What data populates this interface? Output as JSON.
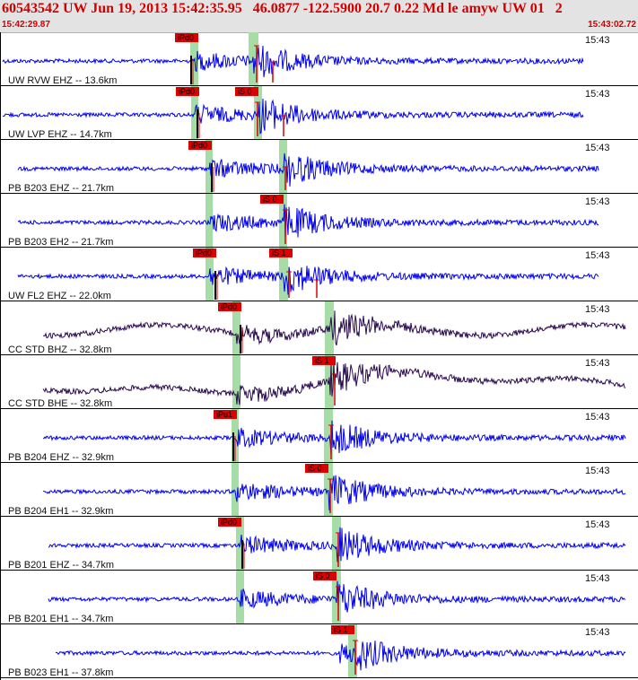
{
  "header": {
    "title": "60543542 UW Jun 19, 2013 15:42:35.95   46.0877 -122.5900 20.7 0.22 Md le amyw UW 01   2",
    "start_time": "15:42:29.87",
    "end_time": "15:43:02.72"
  },
  "colors": {
    "wave": "#0000ee",
    "wave_broadband": "#2a0a50",
    "pick": "#dd0000",
    "window": "#a6dca6",
    "separator": "#000000",
    "text": "#111111"
  },
  "traces": [
    {
      "label": "UW RVW EHZ -- 13.6km",
      "time_label": "15:43",
      "picks": [
        {
          "text": "iPd0"
        }
      ]
    },
    {
      "label": "UW LVP EHZ -- 14.7km",
      "time_label": "15:43",
      "picks": [
        {
          "text": "iPd0"
        },
        {
          "text": "iS 0"
        }
      ]
    },
    {
      "label": "PB B203 EHZ -- 21.7km",
      "time_label": "15:43",
      "picks": [
        {
          "text": "iPd0"
        }
      ]
    },
    {
      "label": "PB B203 EH2 -- 21.7km",
      "time_label": "15:43",
      "picks": [
        {
          "text": "iS 0"
        }
      ]
    },
    {
      "label": "UW FL2 EHZ -- 22.0km",
      "time_label": "15:43",
      "picks": [
        {
          "text": "iPd0"
        },
        {
          "text": "iS 1"
        }
      ]
    },
    {
      "label": "CC STD BHZ -- 32.8km",
      "time_label": "15:43",
      "picks": [
        {
          "text": "iPd0"
        }
      ]
    },
    {
      "label": "CC STD BHE -- 32.8km",
      "time_label": "15:43",
      "picks": [
        {
          "text": "iS 1"
        }
      ]
    },
    {
      "label": "PB B204 EHZ -- 32.9km",
      "time_label": "15:43",
      "picks": [
        {
          "text": "iPu1"
        }
      ]
    },
    {
      "label": "PB B204 EH1 -- 32.9km",
      "time_label": "15:43",
      "picks": [
        {
          "text": "iS 0"
        }
      ]
    },
    {
      "label": "PB B201 EHZ -- 34.7km",
      "time_label": "15:43",
      "picks": [
        {
          "text": "iPd0"
        }
      ]
    },
    {
      "label": "PB B201 EH1 -- 34.7km",
      "time_label": "15:43",
      "picks": [
        {
          "text": "iS 0"
        }
      ]
    },
    {
      "label": "PB B023 EH1 -- 37.8km",
      "time_label": "15:43",
      "picks": [
        {
          "text": "iS 1"
        }
      ]
    }
  ]
}
